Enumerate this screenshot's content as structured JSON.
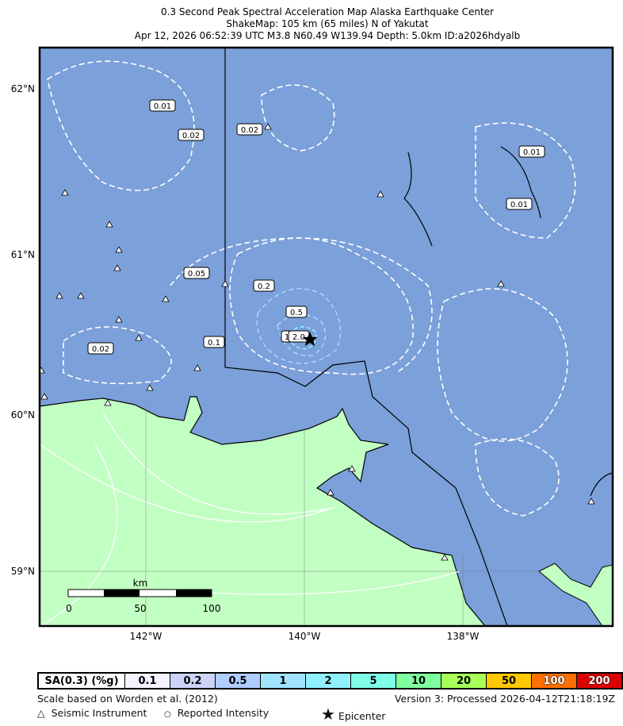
{
  "title": {
    "line1": "0.3 Second Peak Spectral Acceleration Map Alaska Earthquake Center",
    "line2": "ShakeMap: 105 km (65 miles) N of Yakutat",
    "line3": "Apr 12, 2026 06:52:39 UTC M3.8 N60.49 W139.94 Depth: 5.0km ID:a2026hdyalb"
  },
  "map": {
    "lat_ticks": [
      "62°N",
      "61°N",
      "60°N",
      "59°N"
    ],
    "lon_ticks": [
      "142°W",
      "140°W",
      "138°W"
    ],
    "contour_labels": [
      "0.01",
      "0.02",
      "0.02",
      "0.01",
      "0.01",
      "0.05",
      "0.2",
      "0.5",
      "1",
      "2.0",
      "0.1",
      "0.02"
    ],
    "scale_bar": {
      "unit": "km",
      "ticks": [
        "0",
        "50",
        "100"
      ]
    },
    "colors": {
      "land": "#7ba0da",
      "ocean": "#c2ffc2",
      "contour": "#ffffff"
    },
    "epicenter_icon": "star-icon",
    "station_icon": "triangle-icon"
  },
  "legend": {
    "header": "SA(0.3) (%g)",
    "bins": [
      {
        "label": "0.1",
        "color": "#f4f4ff"
      },
      {
        "label": "0.2",
        "color": "#cdd3f8"
      },
      {
        "label": "0.5",
        "color": "#b0cdff"
      },
      {
        "label": "1",
        "color": "#a0e4ff"
      },
      {
        "label": "2",
        "color": "#90f0fc"
      },
      {
        "label": "5",
        "color": "#80ffe8"
      },
      {
        "label": "10",
        "color": "#80ffa0"
      },
      {
        "label": "20",
        "color": "#a8ff58"
      },
      {
        "label": "50",
        "color": "#ffc800"
      },
      {
        "label": "100",
        "color": "#ff7000"
      },
      {
        "label": "200",
        "color": "#dd0000"
      }
    ]
  },
  "footer": {
    "scale_note": "Scale based on Worden et al. (2012)",
    "version": "Version 3: Processed 2026-04-12T21:18:19Z",
    "seismic": "Seismic Instrument",
    "reported": "Reported Intensity",
    "epicenter": "Epicenter"
  }
}
